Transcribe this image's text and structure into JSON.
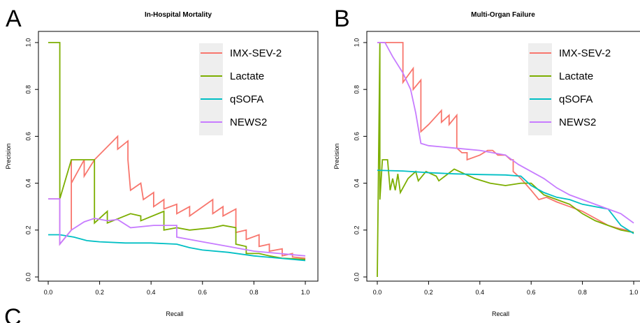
{
  "panel_labels": [
    "A",
    "B",
    "C"
  ],
  "chart_data": [
    {
      "type": "line",
      "panel": "A",
      "title": "In-Hospital Mortality",
      "xlabel": "Recall",
      "ylabel": "Precision",
      "xlim": [
        0,
        1
      ],
      "ylim": [
        0,
        1
      ],
      "xticks": [
        "0.0",
        "0.2",
        "0.4",
        "0.6",
        "0.8",
        "1.0"
      ],
      "yticks": [
        "0.0",
        "0.2",
        "0.4",
        "0.6",
        "0.8",
        "1.0"
      ],
      "grid": false,
      "legend_position": "top-right",
      "series": [
        {
          "name": "IMX-SEV-2",
          "color": "#f8766d",
          "points": [
            [
              0.0,
              0.333
            ],
            [
              0.045,
              0.333
            ],
            [
              0.045,
              0.14
            ],
            [
              0.09,
              0.2
            ],
            [
              0.09,
              0.5
            ],
            [
              0.09,
              0.4
            ],
            [
              0.14,
              0.5
            ],
            [
              0.14,
              0.43
            ],
            [
              0.18,
              0.5
            ],
            [
              0.27,
              0.6
            ],
            [
              0.27,
              0.545
            ],
            [
              0.31,
              0.58
            ],
            [
              0.31,
              0.5
            ],
            [
              0.32,
              0.37
            ],
            [
              0.36,
              0.4
            ],
            [
              0.37,
              0.33
            ],
            [
              0.41,
              0.36
            ],
            [
              0.41,
              0.3
            ],
            [
              0.45,
              0.33
            ],
            [
              0.45,
              0.29
            ],
            [
              0.5,
              0.31
            ],
            [
              0.5,
              0.27
            ],
            [
              0.55,
              0.3
            ],
            [
              0.55,
              0.26
            ],
            [
              0.64,
              0.33
            ],
            [
              0.64,
              0.27
            ],
            [
              0.68,
              0.3
            ],
            [
              0.68,
              0.26
            ],
            [
              0.73,
              0.29
            ],
            [
              0.73,
              0.19
            ],
            [
              0.77,
              0.2
            ],
            [
              0.77,
              0.16
            ],
            [
              0.82,
              0.18
            ],
            [
              0.82,
              0.13
            ],
            [
              0.86,
              0.14
            ],
            [
              0.86,
              0.11
            ],
            [
              0.91,
              0.12
            ],
            [
              0.91,
              0.09
            ],
            [
              0.95,
              0.1
            ],
            [
              0.95,
              0.085
            ],
            [
              1.0,
              0.08
            ]
          ]
        },
        {
          "name": "Lactate",
          "color": "#7cae00",
          "points": [
            [
              0.0,
              1.0
            ],
            [
              0.045,
              1.0
            ],
            [
              0.045,
              0.333
            ],
            [
              0.09,
              0.5
            ],
            [
              0.14,
              0.5
            ],
            [
              0.18,
              0.5
            ],
            [
              0.18,
              0.23
            ],
            [
              0.23,
              0.28
            ],
            [
              0.23,
              0.23
            ],
            [
              0.32,
              0.27
            ],
            [
              0.36,
              0.26
            ],
            [
              0.36,
              0.24
            ],
            [
              0.45,
              0.28
            ],
            [
              0.45,
              0.2
            ],
            [
              0.5,
              0.21
            ],
            [
              0.55,
              0.2
            ],
            [
              0.64,
              0.21
            ],
            [
              0.68,
              0.22
            ],
            [
              0.73,
              0.21
            ],
            [
              0.73,
              0.14
            ],
            [
              0.77,
              0.13
            ],
            [
              0.77,
              0.1
            ],
            [
              0.82,
              0.1
            ],
            [
              0.86,
              0.09
            ],
            [
              0.91,
              0.08
            ],
            [
              1.0,
              0.075
            ]
          ]
        },
        {
          "name": "qSOFA",
          "color": "#00bfc4",
          "points": [
            [
              0.0,
              0.18
            ],
            [
              0.045,
              0.18
            ],
            [
              0.1,
              0.17
            ],
            [
              0.15,
              0.155
            ],
            [
              0.2,
              0.15
            ],
            [
              0.3,
              0.145
            ],
            [
              0.4,
              0.145
            ],
            [
              0.5,
              0.14
            ],
            [
              0.55,
              0.125
            ],
            [
              0.6,
              0.115
            ],
            [
              0.7,
              0.105
            ],
            [
              0.8,
              0.09
            ],
            [
              0.9,
              0.08
            ],
            [
              1.0,
              0.07
            ]
          ]
        },
        {
          "name": "NEWS2",
          "color": "#c77cff",
          "points": [
            [
              0.0,
              0.333
            ],
            [
              0.045,
              0.333
            ],
            [
              0.045,
              0.14
            ],
            [
              0.09,
              0.2
            ],
            [
              0.14,
              0.235
            ],
            [
              0.18,
              0.25
            ],
            [
              0.23,
              0.24
            ],
            [
              0.27,
              0.245
            ],
            [
              0.32,
              0.21
            ],
            [
              0.41,
              0.22
            ],
            [
              0.5,
              0.22
            ],
            [
              0.5,
              0.17
            ],
            [
              0.55,
              0.16
            ],
            [
              0.6,
              0.15
            ],
            [
              0.7,
              0.13
            ],
            [
              0.8,
              0.11
            ],
            [
              0.9,
              0.1
            ],
            [
              1.0,
              0.09
            ]
          ]
        }
      ]
    },
    {
      "type": "line",
      "panel": "B",
      "title": "Multi-Organ Failure",
      "xlabel": "Recall",
      "ylabel": "Precision",
      "xlim": [
        0,
        1
      ],
      "ylim": [
        0,
        1
      ],
      "xticks": [
        "0.0",
        "0.2",
        "0.4",
        "0.6",
        "0.8",
        "1.0"
      ],
      "yticks": [
        "0.0",
        "0.2",
        "0.4",
        "0.6",
        "0.8",
        "1.0"
      ],
      "grid": false,
      "legend_position": "top-right",
      "series": [
        {
          "name": "IMX-SEV-2",
          "color": "#f8766d",
          "points": [
            [
              0.0,
              1.0
            ],
            [
              0.1,
              1.0
            ],
            [
              0.1,
              0.83
            ],
            [
              0.14,
              0.89
            ],
            [
              0.14,
              0.8
            ],
            [
              0.17,
              0.84
            ],
            [
              0.17,
              0.62
            ],
            [
              0.2,
              0.65
            ],
            [
              0.25,
              0.71
            ],
            [
              0.25,
              0.66
            ],
            [
              0.28,
              0.69
            ],
            [
              0.28,
              0.65
            ],
            [
              0.31,
              0.69
            ],
            [
              0.31,
              0.55
            ],
            [
              0.33,
              0.53
            ],
            [
              0.35,
              0.53
            ],
            [
              0.35,
              0.5
            ],
            [
              0.4,
              0.52
            ],
            [
              0.43,
              0.54
            ],
            [
              0.45,
              0.54
            ],
            [
              0.47,
              0.52
            ],
            [
              0.5,
              0.52
            ],
            [
              0.52,
              0.5
            ],
            [
              0.53,
              0.5
            ],
            [
              0.53,
              0.45
            ],
            [
              0.56,
              0.42
            ],
            [
              0.6,
              0.37
            ],
            [
              0.63,
              0.33
            ],
            [
              0.66,
              0.34
            ],
            [
              0.7,
              0.32
            ],
            [
              0.75,
              0.3
            ],
            [
              0.8,
              0.28
            ],
            [
              0.85,
              0.25
            ],
            [
              0.9,
              0.22
            ],
            [
              0.93,
              0.21
            ],
            [
              0.97,
              0.2
            ],
            [
              1.0,
              0.19
            ]
          ]
        },
        {
          "name": "Lactate",
          "color": "#7cae00",
          "points": [
            [
              0.0,
              0.0
            ],
            [
              0.01,
              1.0
            ],
            [
              0.01,
              0.33
            ],
            [
              0.02,
              0.5
            ],
            [
              0.04,
              0.5
            ],
            [
              0.05,
              0.37
            ],
            [
              0.06,
              0.42
            ],
            [
              0.07,
              0.37
            ],
            [
              0.08,
              0.44
            ],
            [
              0.09,
              0.36
            ],
            [
              0.12,
              0.42
            ],
            [
              0.15,
              0.45
            ],
            [
              0.16,
              0.41
            ],
            [
              0.19,
              0.45
            ],
            [
              0.23,
              0.43
            ],
            [
              0.24,
              0.41
            ],
            [
              0.3,
              0.46
            ],
            [
              0.34,
              0.44
            ],
            [
              0.38,
              0.42
            ],
            [
              0.44,
              0.4
            ],
            [
              0.5,
              0.39
            ],
            [
              0.56,
              0.4
            ],
            [
              0.6,
              0.4
            ],
            [
              0.65,
              0.35
            ],
            [
              0.7,
              0.33
            ],
            [
              0.75,
              0.31
            ],
            [
              0.8,
              0.27
            ],
            [
              0.85,
              0.24
            ],
            [
              0.9,
              0.22
            ],
            [
              0.95,
              0.2
            ],
            [
              1.0,
              0.19
            ]
          ]
        },
        {
          "name": "qSOFA",
          "color": "#00bfc4",
          "points": [
            [
              0.0,
              0.455
            ],
            [
              0.1,
              0.452
            ],
            [
              0.2,
              0.445
            ],
            [
              0.3,
              0.44
            ],
            [
              0.4,
              0.437
            ],
            [
              0.5,
              0.435
            ],
            [
              0.56,
              0.43
            ],
            [
              0.6,
              0.39
            ],
            [
              0.65,
              0.36
            ],
            [
              0.7,
              0.34
            ],
            [
              0.75,
              0.33
            ],
            [
              0.8,
              0.31
            ],
            [
              0.85,
              0.3
            ],
            [
              0.9,
              0.29
            ],
            [
              0.95,
              0.22
            ],
            [
              1.0,
              0.185
            ]
          ]
        },
        {
          "name": "NEWS2",
          "color": "#c77cff",
          "points": [
            [
              0.0,
              1.0
            ],
            [
              0.03,
              1.0
            ],
            [
              0.06,
              0.94
            ],
            [
              0.1,
              0.87
            ],
            [
              0.13,
              0.8
            ],
            [
              0.15,
              0.7
            ],
            [
              0.17,
              0.57
            ],
            [
              0.2,
              0.56
            ],
            [
              0.3,
              0.55
            ],
            [
              0.4,
              0.54
            ],
            [
              0.5,
              0.52
            ],
            [
              0.55,
              0.48
            ],
            [
              0.6,
              0.45
            ],
            [
              0.65,
              0.42
            ],
            [
              0.7,
              0.38
            ],
            [
              0.75,
              0.35
            ],
            [
              0.8,
              0.33
            ],
            [
              0.9,
              0.29
            ],
            [
              0.95,
              0.27
            ],
            [
              1.0,
              0.23
            ]
          ]
        }
      ]
    }
  ]
}
